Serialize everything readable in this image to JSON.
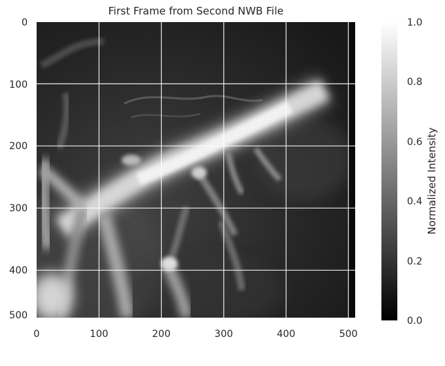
{
  "figure": {
    "title": "First Frame from Second NWB File"
  },
  "image_axes": {
    "x_ticks": [
      "0",
      "100",
      "200",
      "300",
      "400",
      "500"
    ],
    "y_ticks": [
      "0",
      "100",
      "200",
      "300",
      "400",
      "500"
    ],
    "x_range": [
      0,
      511
    ],
    "y_range": [
      0,
      511
    ],
    "grid": true,
    "grid_color": "#ffffff"
  },
  "colorbar": {
    "label": "Normalized Intensity",
    "ticks": [
      "0.0",
      "0.2",
      "0.4",
      "0.6",
      "0.8",
      "1.0"
    ],
    "colormap": "gray",
    "range": [
      0,
      1
    ]
  },
  "colors": {
    "background": "#ffffff",
    "text": "#262626",
    "image_dark": "#141414",
    "vessel_bright": "#f5f5f5"
  }
}
